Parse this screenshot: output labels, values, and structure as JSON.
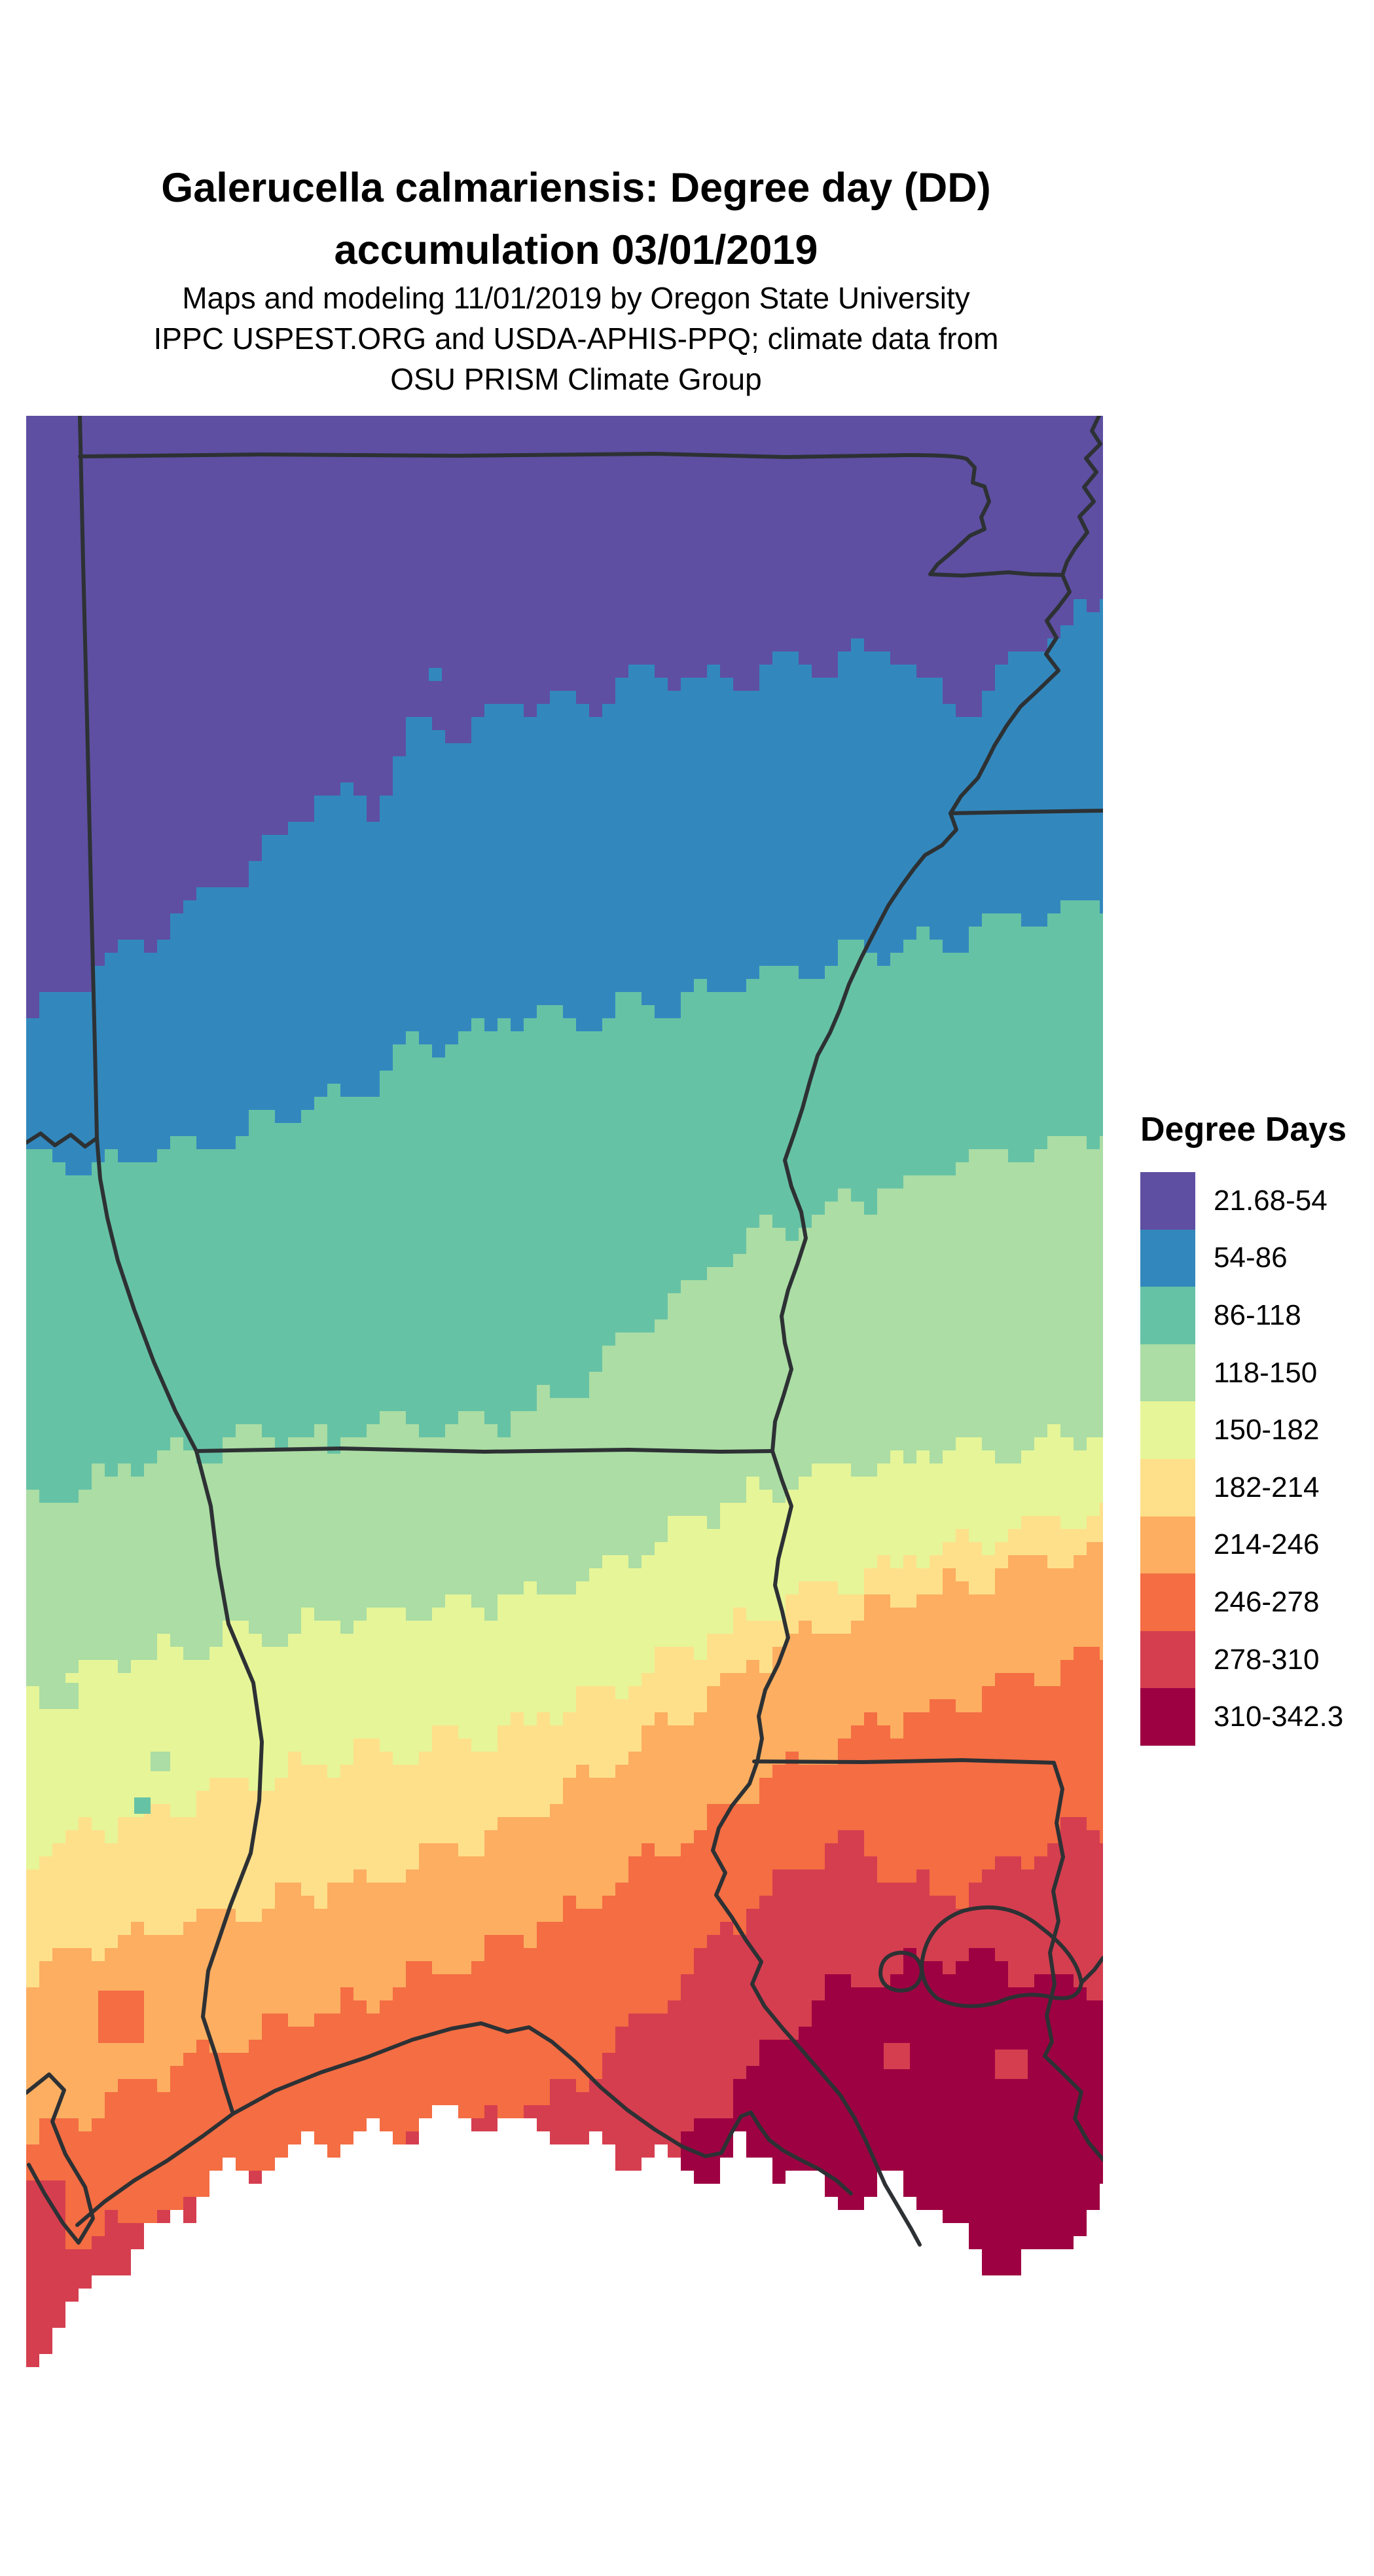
{
  "title": {
    "line1": "Galerucella calmariensis: Degree day (DD)",
    "line2": "accumulation 03/01/2019"
  },
  "subtitle": {
    "line1": "Maps and modeling 11/01/2019 by Oregon State University",
    "line2": "IPPC USPEST.ORG and USDA-APHIS-PPQ; climate data from",
    "line3": "OSU PRISM Climate Group"
  },
  "legend": {
    "title": "Degree Days",
    "entries": [
      {
        "label": "21.68-54",
        "color": "#5e4fa2"
      },
      {
        "label": "54-86",
        "color": "#3288bd"
      },
      {
        "label": "86-118",
        "color": "#66c2a5"
      },
      {
        "label": "118-150",
        "color": "#abdda4"
      },
      {
        "label": "150-182",
        "color": "#e6f598"
      },
      {
        "label": "182-214",
        "color": "#fee08b"
      },
      {
        "label": "214-246",
        "color": "#fdae61"
      },
      {
        "label": "246-278",
        "color": "#f46d43"
      },
      {
        "label": "278-310",
        "color": "#d53e4f"
      },
      {
        "label": "310-342.3",
        "color": "#9e0142"
      }
    ]
  },
  "map": {
    "border_color": "#2d3134",
    "sea_color": "#ffffff"
  }
}
